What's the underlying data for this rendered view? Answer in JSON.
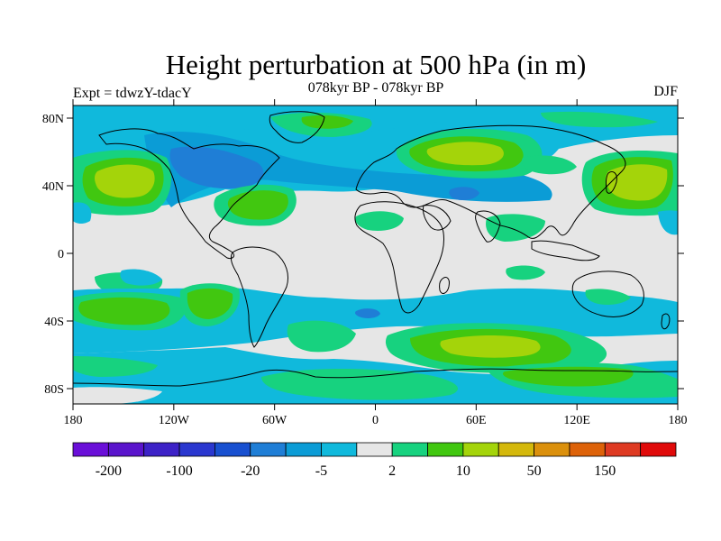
{
  "title": "Height perturbation at 500 hPa (in m)",
  "left_label": "Expt = tdwzY-tdacY",
  "center_label": "078kyr BP - 078kyr BP",
  "right_label": "DJF",
  "lat_ticks": [
    "80N",
    "40N",
    "0",
    "40S",
    "80S"
  ],
  "lon_ticks": [
    "180",
    "120W",
    "60W",
    "0",
    "60E",
    "120E",
    "180"
  ],
  "colorbar": {
    "colors": [
      "#6a0fd8",
      "#5a14cc",
      "#3d22c7",
      "#2a37cf",
      "#1850d0",
      "#1f7ed6",
      "#0b9cd6",
      "#10b9dc",
      "#e6e6e6",
      "#17d27f",
      "#41c710",
      "#a4d40a",
      "#d4b80b",
      "#db900c",
      "#dd6209",
      "#de3a22",
      "#e00a0a"
    ],
    "labels": [
      "-200",
      "-100",
      "-20",
      "-5",
      "2",
      "10",
      "50",
      "150"
    ]
  },
  "palette": {
    "land_outline": "#000000",
    "background": "#e6e6e6"
  }
}
